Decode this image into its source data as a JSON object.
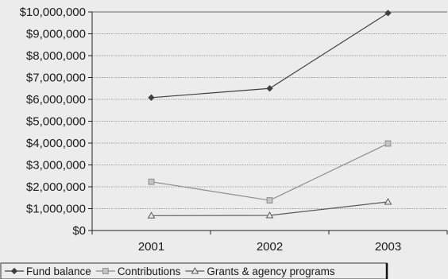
{
  "chart_data": {
    "type": "line",
    "x": [
      "2001",
      "2002",
      "2003"
    ],
    "ylim": [
      0,
      10000000
    ],
    "yticks": [
      0,
      1000000,
      2000000,
      3000000,
      4000000,
      5000000,
      6000000,
      7000000,
      8000000,
      9000000,
      10000000
    ],
    "ytick_labels": [
      "$0",
      "$1,000,000",
      "$2,000,000",
      "$3,000,000",
      "$4,000,000",
      "$5,000,000",
      "$6,000,000",
      "$7,000,000",
      "$8,000,000",
      "$9,000,000",
      "$10,000,000"
    ],
    "grid": true,
    "legend_position": "bottom",
    "series": [
      {
        "name": "Fund balance",
        "marker": "diamond",
        "color": "#404040",
        "values": [
          6080000,
          6500000,
          9950000
        ]
      },
      {
        "name": "Contributions",
        "marker": "square",
        "color": "#8c8c8c",
        "values": [
          2230000,
          1380000,
          3980000
        ]
      },
      {
        "name": "Grants & agency programs",
        "marker": "triangle",
        "color": "#5a5a5a",
        "values": [
          680000,
          690000,
          1310000
        ]
      }
    ]
  }
}
